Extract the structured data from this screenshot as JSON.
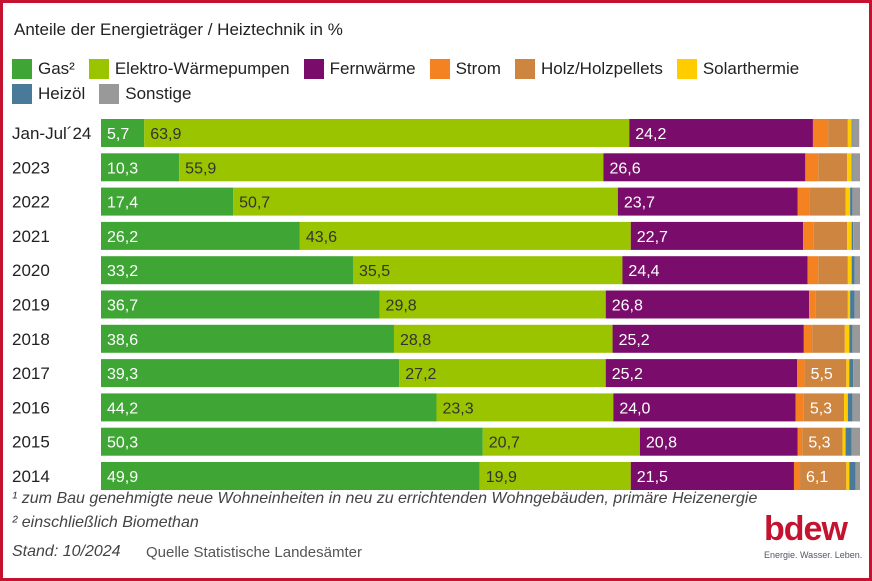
{
  "chart_data": {
    "type": "bar",
    "orientation": "horizontal",
    "stacked": true,
    "title": "Anteile der Energieträger / Heiztechnik in %",
    "categories": [
      "Jan-Jul´24",
      "2023",
      "2022",
      "2021",
      "2020",
      "2019",
      "2018",
      "2017",
      "2016",
      "2015",
      "2014"
    ],
    "series": [
      {
        "name": "Gas²",
        "color": "#3fa535",
        "values": [
          5.7,
          10.3,
          17.4,
          26.2,
          33.2,
          36.7,
          38.6,
          39.3,
          44.2,
          50.3,
          49.9
        ]
      },
      {
        "name": "Elektro-Wärmepumpen",
        "color": "#9bc400",
        "values": [
          63.9,
          55.9,
          50.7,
          43.6,
          35.5,
          29.8,
          28.8,
          27.2,
          23.3,
          20.7,
          19.9
        ]
      },
      {
        "name": "Fernwärme",
        "color": "#7a0c6b",
        "values": [
          24.2,
          26.6,
          23.7,
          22.7,
          24.4,
          26.8,
          25.2,
          25.2,
          24.0,
          20.8,
          21.5
        ]
      },
      {
        "name": "Strom",
        "color": "#f58220",
        "values": [
          2.0,
          1.7,
          1.5,
          1.4,
          1.4,
          0.8,
          1.1,
          1.0,
          1.1,
          0.6,
          0.8
        ]
      },
      {
        "name": "Holz/Holzpellets",
        "color": "#cd8540",
        "values": [
          2.6,
          3.8,
          4.8,
          4.4,
          3.9,
          4.3,
          4.3,
          5.5,
          5.3,
          5.3,
          6.1
        ]
      },
      {
        "name": "Solarthermie",
        "color": "#ffcc00",
        "values": [
          0.5,
          0.6,
          0.6,
          0.6,
          0.5,
          0.3,
          0.6,
          0.4,
          0.5,
          0.4,
          0.4
        ]
      },
      {
        "name": "Heizöl",
        "color": "#4a7a9a",
        "values": [
          0.1,
          0.1,
          0.3,
          0.2,
          0.4,
          0.6,
          0.4,
          0.5,
          0.6,
          0.8,
          0.8
        ]
      },
      {
        "name": "Sonstige",
        "color": "#999999",
        "values": [
          0.9,
          1.0,
          1.0,
          0.9,
          0.7,
          0.7,
          1.0,
          0.9,
          1.0,
          1.1,
          0.6
        ]
      }
    ],
    "data_labels": {
      "Gas²": [
        "5,7",
        "10,3",
        "17,4",
        "26,2",
        "33,2",
        "36,7",
        "38,6",
        "39,3",
        "44,2",
        "50,3",
        "49,9"
      ],
      "Elektro-Wärmepumpen": [
        "63,9",
        "55,9",
        "50,7",
        "43,6",
        "35,5",
        "29,8",
        "28,8",
        "27,2",
        "23,3",
        "20,7",
        "19,9"
      ],
      "Fernwärme": [
        "24,2",
        "26,6",
        "23,7",
        "22,7",
        "24,4",
        "26,8",
        "25,2",
        "25,2",
        "24,0",
        "20,8",
        "21,5"
      ],
      "Holz/Holzpellets": [
        "",
        "",
        "",
        "",
        "",
        "",
        "",
        "5,5",
        "5,3",
        "5,3",
        "6,1"
      ]
    },
    "xlim": [
      0,
      100
    ],
    "legend": "top"
  },
  "footnotes": {
    "note1": "¹ zum Bau genehmigte neue Wohneinheiten in neu zu errichtenden Wohngebäuden, primäre Heizenergie",
    "note2": "² einschließlich Biomethan",
    "stand": "Stand: 10/2024",
    "source": "Quelle Statistische Landesämter"
  },
  "logo": {
    "text": "bdew",
    "tagline": "Energie. Wasser. Leben."
  }
}
